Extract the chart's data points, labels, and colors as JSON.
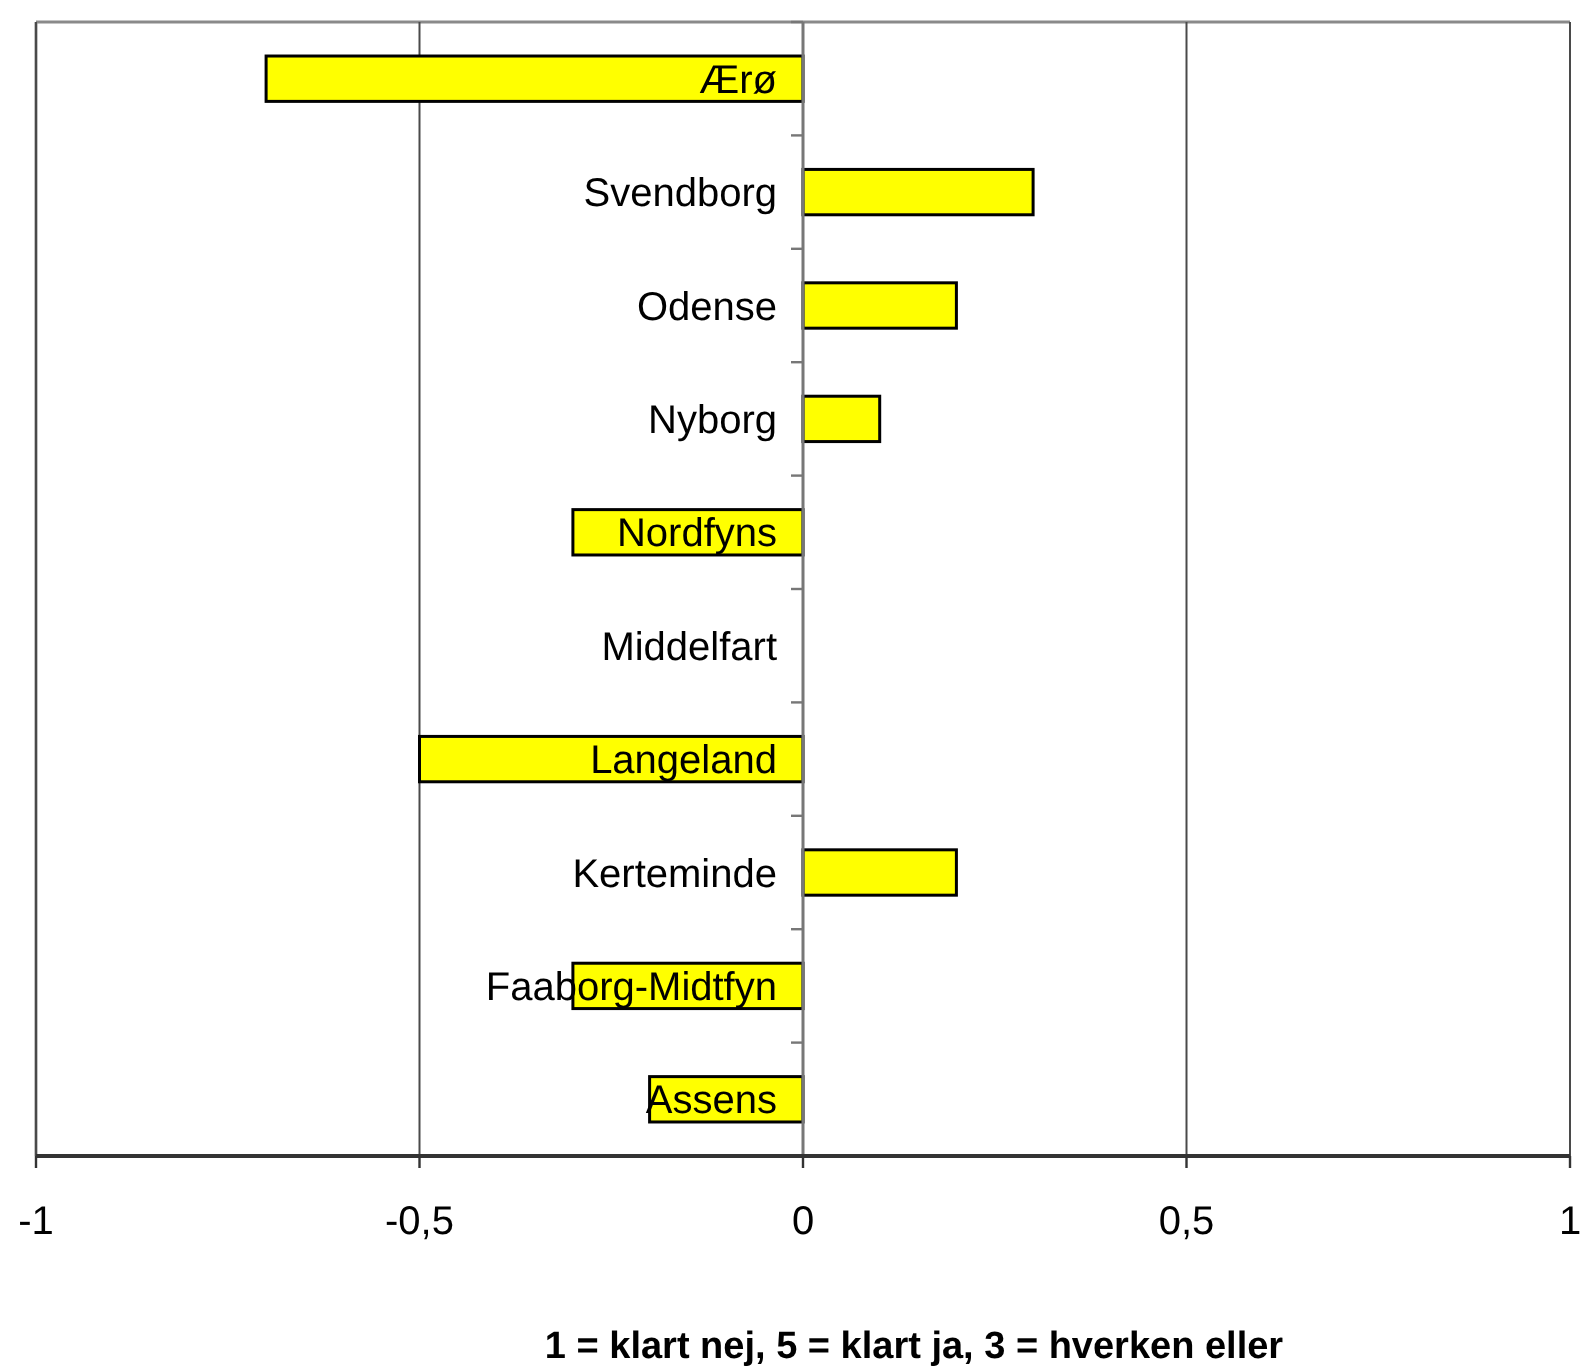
{
  "chart_data": {
    "type": "bar",
    "orientation": "horizontal",
    "xlabel": "1 = klart nej, 5 = klart ja, 3 = hverken eller",
    "categories": [
      "Ærø",
      "Svendborg",
      "Odense",
      "Nyborg",
      "Nordfyns",
      "Middelfart",
      "Langeland",
      "Kerteminde",
      "Faaborg-Midtfyn",
      "Assens"
    ],
    "values": [
      -0.7,
      0.3,
      0.2,
      0.1,
      -0.3,
      0,
      -0.5,
      0.2,
      -0.3,
      -0.2
    ],
    "color": "#ffff00",
    "xlim": [
      -1,
      1
    ],
    "xticks": [
      -1,
      {
        "value": -0.5,
        "label": "-0,5"
      },
      0,
      {
        "value": 0.5,
        "label": "0,5"
      },
      1
    ],
    "grid": "x"
  }
}
